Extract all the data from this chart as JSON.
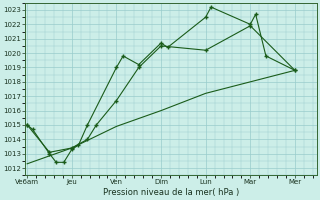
{
  "background_color": "#cceee8",
  "grid_color": "#99cccc",
  "line_color": "#1a5c1a",
  "marker": "+",
  "xlabel": "Pression niveau de la mer( hPa )",
  "ylim": [
    1011.5,
    1023.5
  ],
  "yticks": [
    1012,
    1013,
    1014,
    1015,
    1016,
    1017,
    1018,
    1019,
    1020,
    1021,
    1022,
    1023
  ],
  "x_labels": [
    "Ve6am",
    "Jeu",
    "Ven",
    "Dim",
    "Lun",
    "Mar",
    "Mer"
  ],
  "x_positions": [
    0,
    1,
    2,
    3,
    4,
    5,
    6
  ],
  "xlim": [
    -0.05,
    6.5
  ],
  "series1_x": [
    0,
    0.12,
    0.5,
    0.65,
    0.82,
    1.0,
    1.15,
    1.35,
    2.0,
    2.15,
    2.5,
    3.0,
    3.15,
    4.0,
    4.12,
    5.0,
    5.12,
    5.35,
    6.0
  ],
  "series1_y": [
    1015.0,
    1014.7,
    1013.0,
    1012.4,
    1012.4,
    1013.3,
    1013.6,
    1015.0,
    1019.0,
    1019.8,
    1019.2,
    1020.7,
    1020.4,
    1022.5,
    1023.2,
    1022.0,
    1022.7,
    1019.8,
    1018.8
  ],
  "series2_x": [
    0,
    0.5,
    1.0,
    1.35,
    1.55,
    2.0,
    2.5,
    3.0,
    4.0,
    5.0,
    6.0
  ],
  "series2_y": [
    1015.0,
    1013.1,
    1013.4,
    1014.0,
    1015.0,
    1016.7,
    1019.0,
    1020.5,
    1020.2,
    1021.9,
    1018.8
  ],
  "series3_x": [
    0,
    1.0,
    2.0,
    3.0,
    4.0,
    5.0,
    6.0
  ],
  "series3_y": [
    1012.3,
    1013.4,
    1014.9,
    1016.0,
    1017.2,
    1018.0,
    1018.8
  ]
}
